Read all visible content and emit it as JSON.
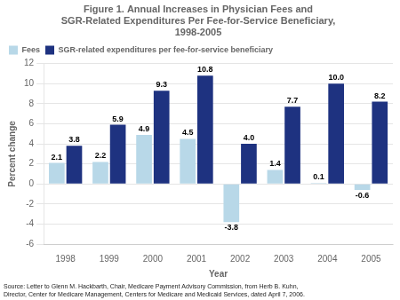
{
  "chart_data": {
    "type": "bar",
    "title": [
      "Figure 1. Annual Increases in Physician Fees and",
      "SGR-Related Expenditures Per Fee-for-Service Beneficiary,",
      "1998-2005"
    ],
    "x_label": "Year",
    "y_label": "Percent change",
    "categories": [
      "1998",
      "1999",
      "2000",
      "2001",
      "2002",
      "2003",
      "2004",
      "2005"
    ],
    "series": [
      {
        "name": "Fees",
        "color": "#b8d8e8",
        "values": [
          2.1,
          2.2,
          4.9,
          4.5,
          -3.8,
          1.4,
          0.1,
          -0.6
        ]
      },
      {
        "name": "SGR-related expenditures per fee-for-service beneficiary",
        "color": "#1e3280",
        "values": [
          3.8,
          5.9,
          9.3,
          10.8,
          4.0,
          7.7,
          10.0,
          8.2
        ],
        "value_labels": [
          "3.8",
          "5.9",
          "9.3",
          "10.8",
          "4.0",
          "7.7",
          "10.0",
          "8.2"
        ]
      }
    ],
    "ylim": [
      -6,
      12
    ],
    "yticks": [
      -6,
      -4,
      -2,
      0,
      2,
      4,
      6,
      8,
      10,
      12
    ],
    "grid": true,
    "legend": "top",
    "data_labels": true,
    "annotations": [
      "Source: Letter to Glenn M. Hackbarth, Chair, Medicare Payment Advisory Commission, from Herb B. Kuhn,",
      "Director, Center for Medicare Management, Centers for Medicare and Medicaid Services, dated April 7, 2006."
    ]
  }
}
